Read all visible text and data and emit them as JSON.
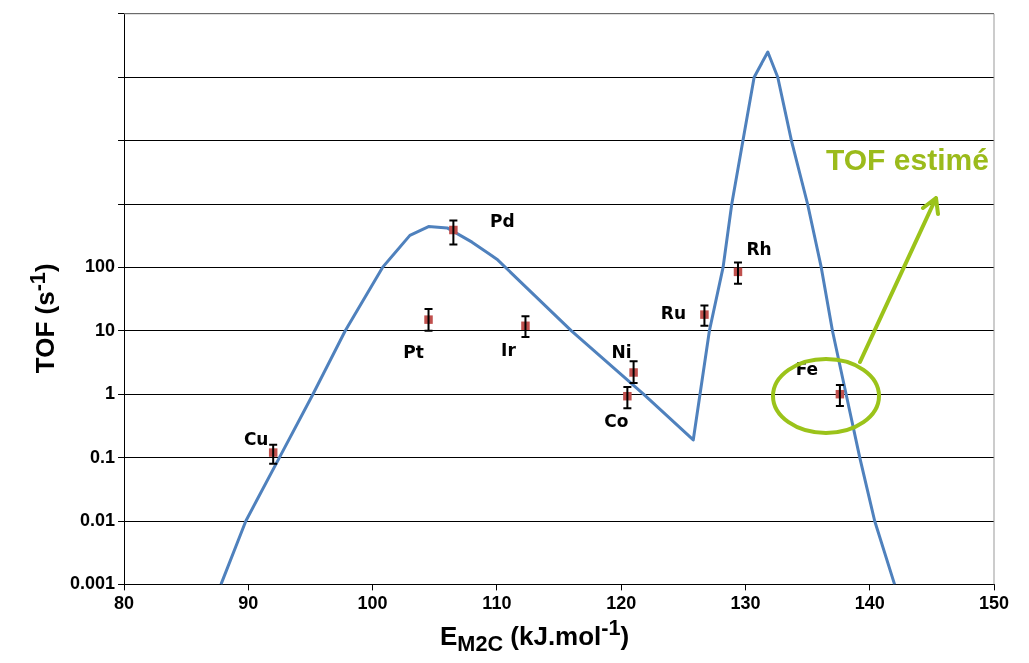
{
  "chart_data": {
    "type": "scatter",
    "xlabel": "E$_{M2C}$ (kJ.mol$^{-1}$)",
    "ylabel": "TOF (s$^{-1}$)",
    "xlim": [
      80,
      150
    ],
    "xticks": [
      80,
      90,
      100,
      110,
      120,
      130,
      140,
      150
    ],
    "ylim": [
      0.001,
      1000000
    ],
    "log": "y",
    "yticks": [
      0.001,
      0.01,
      0.1,
      1,
      10,
      100,
      {
        "value": 1000,
        "label": null
      },
      {
        "value": 10000,
        "label": null
      },
      {
        "value": 100000,
        "label": null
      },
      {
        "value": 1000000,
        "label": null
      }
    ],
    "grid": "y",
    "series": [
      {
        "type": "line",
        "color": "#4f81bd",
        "marker": "none",
        "line_style": "solid",
        "x": [
          87.8,
          89.8,
          92.5,
          95.2,
          97.8,
          100.8,
          103,
          104.5,
          106,
          108,
          110,
          116,
          121.8,
          125.8,
          127.1,
          128.2,
          128.9,
          129.8,
          130.7,
          131.8,
          132.6,
          133.7,
          135,
          136.1,
          137,
          138.1,
          139.2,
          140.4,
          142
        ],
        "values": [
          0.001,
          0.01,
          0.1,
          1,
          10,
          100,
          320,
          440,
          420,
          250,
          135,
          10,
          1,
          0.19,
          10,
          100,
          1000,
          10000,
          100000,
          250000,
          100000,
          10000,
          1000,
          100,
          10,
          1,
          0.1,
          0.01,
          0.001
        ]
      },
      {
        "type": "scatter",
        "color": "#c0504d",
        "marker": "square",
        "x": [
          92,
          104.5,
          106.5,
          112.3,
          120.5,
          121,
          126.7,
          129.4,
          137.6
        ],
        "values": [
          0.12,
          15,
          390,
          12,
          0.93,
          2.2,
          18,
          85,
          1
        ],
        "errors": [
          [
            0.08,
            0.16
          ],
          [
            10,
            22
          ],
          [
            230,
            550
          ],
          [
            8,
            17
          ],
          [
            0.6,
            1.3
          ],
          [
            1.5,
            3.3
          ],
          [
            12,
            25
          ],
          [
            55,
            120
          ],
          [
            0.65,
            1.4
          ]
        ]
      }
    ],
    "annotations": [
      {
        "text": "Cu",
        "x": 92,
        "y": 0.12
      },
      {
        "text": "Pt",
        "x": 104.5,
        "y": 15
      },
      {
        "text": "Pd",
        "x": 106.5,
        "y": 390
      },
      {
        "text": "Ir",
        "x": 112.3,
        "y": 12
      },
      {
        "text": "Co",
        "x": 120.5,
        "y": 0.93
      },
      {
        "text": "Ni",
        "x": 121,
        "y": 2.2
      },
      {
        "text": "Ru",
        "x": 126.7,
        "y": 18
      },
      {
        "text": "Rh",
        "x": 129.4,
        "y": 85
      },
      {
        "text": "Fe",
        "x": 137.6,
        "y": 1
      },
      "TOF estimé"
    ]
  }
}
